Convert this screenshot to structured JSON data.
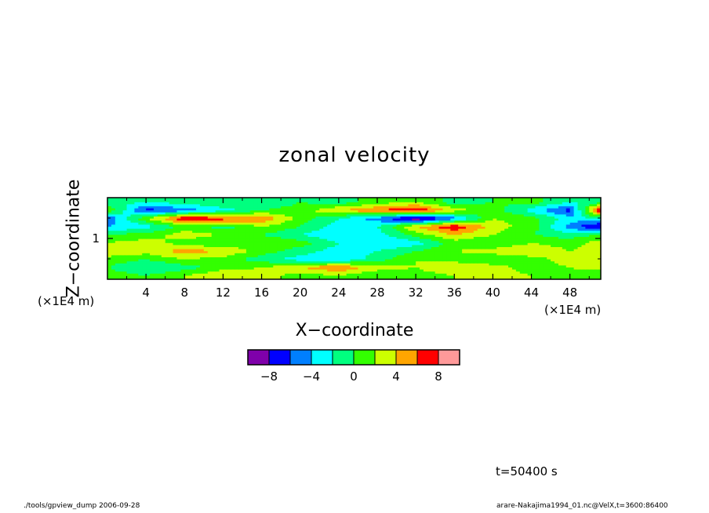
{
  "chart_data": {
    "type": "heatmap",
    "title": "zonal velocity",
    "xlabel": "X−coordinate",
    "ylabel": "Z−coordinate",
    "x_unit": "(×1E4 m)",
    "y_unit": "(×1E4 m)",
    "x_ticks": [
      "4",
      "8",
      "12",
      "16",
      "20",
      "24",
      "28",
      "32",
      "36",
      "40",
      "44",
      "48"
    ],
    "x_tick_values": [
      4,
      8,
      12,
      16,
      20,
      24,
      28,
      32,
      36,
      40,
      44,
      48
    ],
    "y_ticks": [
      "1"
    ],
    "y_tick_values": [
      1
    ],
    "xlim": [
      0,
      51.2
    ],
    "ylim": [
      0,
      2.0
    ],
    "colorbar": {
      "levels": [
        -10,
        -8,
        -6,
        -4,
        -2,
        0,
        2,
        4,
        6,
        8,
        10
      ],
      "colors": [
        "#7f00aa",
        "#0000ff",
        "#007fff",
        "#00ffff",
        "#00ff7f",
        "#33ff00",
        "#ccff00",
        "#ffa500",
        "#ff0000",
        "#ff9999"
      ],
      "tick_labels": [
        "−8",
        "−4",
        "0",
        "4",
        "8"
      ],
      "tick_values": [
        -8,
        -4,
        0,
        4,
        8
      ]
    },
    "field_rows": [
      {
        "z": 1.9,
        "x": [
          0,
          4,
          8,
          12,
          16,
          20,
          24,
          28,
          32,
          36,
          40,
          44,
          48,
          51.2
        ],
        "u": [
          -1,
          -2,
          -1,
          0,
          -2,
          0,
          -1,
          1,
          2,
          -1,
          0,
          1,
          -2,
          -1
        ]
      },
      {
        "z": 1.7,
        "x": [
          0,
          4,
          8,
          12,
          16,
          20,
          24,
          28,
          32,
          36,
          40,
          44,
          48,
          51.2
        ],
        "u": [
          2,
          -7,
          -5,
          -3,
          0,
          1,
          4,
          6,
          8,
          3,
          1,
          -3,
          -7,
          9
        ]
      },
      {
        "z": 1.5,
        "x": [
          0,
          4,
          8,
          12,
          16,
          20,
          24,
          28,
          32,
          36,
          40,
          44,
          48,
          51.2
        ],
        "u": [
          -6,
          2,
          8,
          7,
          6,
          1,
          -2,
          -5,
          -10,
          -5,
          2,
          1,
          -3,
          -2
        ]
      },
      {
        "z": 1.3,
        "x": [
          0,
          4,
          8,
          12,
          16,
          20,
          24,
          28,
          32,
          36,
          40,
          44,
          48,
          51.2
        ],
        "u": [
          -4,
          -3,
          1,
          -1,
          2,
          0,
          -3,
          -2,
          4,
          8,
          3,
          1,
          -5,
          -9
        ]
      },
      {
        "z": 1.1,
        "x": [
          0,
          4,
          8,
          12,
          16,
          20,
          24,
          28,
          32,
          36,
          40,
          44,
          48,
          51.2
        ],
        "u": [
          0,
          1,
          3,
          2,
          0,
          -2,
          -4,
          -3,
          1,
          4,
          2,
          0,
          -1,
          0
        ]
      },
      {
        "z": 0.9,
        "x": [
          0,
          4,
          8,
          12,
          16,
          20,
          24,
          28,
          32,
          36,
          40,
          44,
          48,
          51.2
        ],
        "u": [
          2,
          3,
          1,
          0,
          2,
          1,
          -2,
          -4,
          -3,
          1,
          0,
          2,
          1,
          3
        ]
      },
      {
        "z": 0.7,
        "x": [
          0,
          4,
          8,
          12,
          16,
          20,
          24,
          28,
          32,
          36,
          40,
          44,
          48,
          51.2
        ],
        "u": [
          4,
          3,
          5,
          4,
          1,
          -1,
          -3,
          -2,
          0,
          2,
          3,
          4,
          2,
          3
        ]
      },
      {
        "z": 0.5,
        "x": [
          0,
          4,
          8,
          12,
          16,
          20,
          24,
          28,
          32,
          36,
          40,
          44,
          48,
          51.2
        ],
        "u": [
          1,
          0,
          2,
          1,
          -1,
          -3,
          -4,
          -1,
          2,
          1,
          0,
          1,
          3,
          4
        ]
      },
      {
        "z": 0.3,
        "x": [
          0,
          4,
          8,
          12,
          16,
          20,
          24,
          28,
          32,
          36,
          40,
          44,
          48,
          51.2
        ],
        "u": [
          0,
          -2,
          -1,
          1,
          2,
          4,
          6,
          3,
          2,
          4,
          3,
          1,
          2,
          3
        ]
      },
      {
        "z": 0.1,
        "x": [
          0,
          4,
          8,
          12,
          16,
          20,
          24,
          28,
          32,
          36,
          40,
          44,
          48,
          51.2
        ],
        "u": [
          1,
          0,
          2,
          4,
          3,
          1,
          2,
          0,
          1,
          2,
          3,
          2,
          1,
          0
        ]
      }
    ]
  },
  "annotations": {
    "time": "t=50400 s",
    "footer_left": "./tools/gpview_dump 2006-09-28",
    "footer_right": "arare-Nakajima1994_01.nc@VelX,t=3600:86400"
  }
}
